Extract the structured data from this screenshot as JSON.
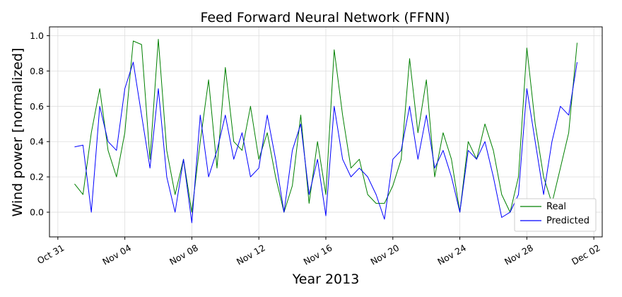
{
  "chart_data": {
    "type": "line",
    "title": "Feed Forward Neural Network (FFNN)",
    "xlabel": "Year 2013",
    "ylabel": "Wind power [normalized]",
    "xlim": [
      "2013-10-30T12:00",
      "2013-12-02T12:00"
    ],
    "ylim": [
      -0.14,
      1.05
    ],
    "x_ticks": [
      "Oct 31",
      "Nov 04",
      "Nov 08",
      "Nov 12",
      "Nov 16",
      "Nov 20",
      "Nov 24",
      "Nov 28",
      "Dec 02"
    ],
    "y_ticks": [
      "0.0",
      "0.2",
      "0.4",
      "0.6",
      "0.8",
      "1.0"
    ],
    "grid": true,
    "legend_position": "lower right",
    "series": [
      {
        "name": "Real",
        "color": "#008000",
        "x": [
          "2013-11-01T00:00",
          "2013-11-01T12:00",
          "2013-11-02T00:00",
          "2013-11-02T12:00",
          "2013-11-03T00:00",
          "2013-11-03T12:00",
          "2013-11-04T00:00",
          "2013-11-04T12:00",
          "2013-11-05T00:00",
          "2013-11-05T12:00",
          "2013-11-06T00:00",
          "2013-11-06T12:00",
          "2013-11-07T00:00",
          "2013-11-07T12:00",
          "2013-11-08T00:00",
          "2013-11-08T12:00",
          "2013-11-09T00:00",
          "2013-11-09T12:00",
          "2013-11-10T00:00",
          "2013-11-10T12:00",
          "2013-11-11T00:00",
          "2013-11-11T12:00",
          "2013-11-12T00:00",
          "2013-11-12T12:00",
          "2013-11-13T00:00",
          "2013-11-13T12:00",
          "2013-11-14T00:00",
          "2013-11-14T12:00",
          "2013-11-15T00:00",
          "2013-11-15T12:00",
          "2013-11-16T00:00",
          "2013-11-16T12:00",
          "2013-11-17T00:00",
          "2013-11-17T12:00",
          "2013-11-18T00:00",
          "2013-11-18T12:00",
          "2013-11-19T00:00",
          "2013-11-19T12:00",
          "2013-11-20T00:00",
          "2013-11-20T12:00",
          "2013-11-21T00:00",
          "2013-11-21T12:00",
          "2013-11-22T00:00",
          "2013-11-22T12:00",
          "2013-11-23T00:00",
          "2013-11-23T12:00",
          "2013-11-24T00:00",
          "2013-11-24T12:00",
          "2013-11-25T00:00",
          "2013-11-25T12:00",
          "2013-11-26T00:00",
          "2013-11-26T12:00",
          "2013-11-27T00:00",
          "2013-11-27T12:00",
          "2013-11-28T00:00",
          "2013-11-28T12:00",
          "2013-11-29T00:00",
          "2013-11-29T12:00",
          "2013-11-30T00:00",
          "2013-11-30T12:00",
          "2013-12-01T00:00"
        ],
        "y": [
          0.16,
          0.1,
          0.45,
          0.7,
          0.35,
          0.2,
          0.45,
          0.97,
          0.95,
          0.3,
          0.98,
          0.35,
          0.1,
          0.3,
          0.0,
          0.4,
          0.75,
          0.25,
          0.82,
          0.4,
          0.35,
          0.6,
          0.3,
          0.45,
          0.2,
          0.0,
          0.15,
          0.55,
          0.05,
          0.4,
          0.1,
          0.92,
          0.55,
          0.25,
          0.3,
          0.1,
          0.05,
          0.05,
          0.15,
          0.3,
          0.87,
          0.45,
          0.75,
          0.2,
          0.45,
          0.3,
          0.0,
          0.4,
          0.3,
          0.5,
          0.35,
          0.1,
          0.0,
          0.2,
          0.93,
          0.5,
          0.2,
          0.05,
          0.25,
          0.45,
          0.96
        ]
      },
      {
        "name": "Predicted",
        "color": "#0000ff",
        "x": [
          "2013-11-01T00:00",
          "2013-11-01T12:00",
          "2013-11-02T00:00",
          "2013-11-02T12:00",
          "2013-11-03T00:00",
          "2013-11-03T12:00",
          "2013-11-04T00:00",
          "2013-11-04T12:00",
          "2013-11-05T00:00",
          "2013-11-05T12:00",
          "2013-11-06T00:00",
          "2013-11-06T12:00",
          "2013-11-07T00:00",
          "2013-11-07T12:00",
          "2013-11-08T00:00",
          "2013-11-08T12:00",
          "2013-11-09T00:00",
          "2013-11-09T12:00",
          "2013-11-10T00:00",
          "2013-11-10T12:00",
          "2013-11-11T00:00",
          "2013-11-11T12:00",
          "2013-11-12T00:00",
          "2013-11-12T12:00",
          "2013-11-13T00:00",
          "2013-11-13T12:00",
          "2013-11-14T00:00",
          "2013-11-14T12:00",
          "2013-11-15T00:00",
          "2013-11-15T12:00",
          "2013-11-16T00:00",
          "2013-11-16T12:00",
          "2013-11-17T00:00",
          "2013-11-17T12:00",
          "2013-11-18T00:00",
          "2013-11-18T12:00",
          "2013-11-19T00:00",
          "2013-11-19T12:00",
          "2013-11-20T00:00",
          "2013-11-20T12:00",
          "2013-11-21T00:00",
          "2013-11-21T12:00",
          "2013-11-22T00:00",
          "2013-11-22T12:00",
          "2013-11-23T00:00",
          "2013-11-23T12:00",
          "2013-11-24T00:00",
          "2013-11-24T12:00",
          "2013-11-25T00:00",
          "2013-11-25T12:00",
          "2013-11-26T00:00",
          "2013-11-26T12:00",
          "2013-11-27T00:00",
          "2013-11-27T12:00",
          "2013-11-28T00:00",
          "2013-11-28T12:00",
          "2013-11-29T00:00",
          "2013-11-29T12:00",
          "2013-11-30T00:00",
          "2013-11-30T12:00",
          "2013-12-01T00:00"
        ],
        "y": [
          0.37,
          0.38,
          0.0,
          0.6,
          0.4,
          0.35,
          0.7,
          0.85,
          0.55,
          0.25,
          0.7,
          0.2,
          0.0,
          0.3,
          -0.06,
          0.55,
          0.2,
          0.35,
          0.55,
          0.3,
          0.45,
          0.2,
          0.25,
          0.55,
          0.3,
          0.0,
          0.35,
          0.5,
          0.1,
          0.3,
          -0.02,
          0.6,
          0.3,
          0.2,
          0.25,
          0.2,
          0.1,
          -0.04,
          0.3,
          0.35,
          0.6,
          0.3,
          0.55,
          0.25,
          0.35,
          0.2,
          0.0,
          0.35,
          0.3,
          0.4,
          0.2,
          -0.03,
          0.0,
          0.1,
          0.7,
          0.4,
          0.1,
          0.4,
          0.6,
          0.55,
          0.85
        ]
      }
    ]
  }
}
